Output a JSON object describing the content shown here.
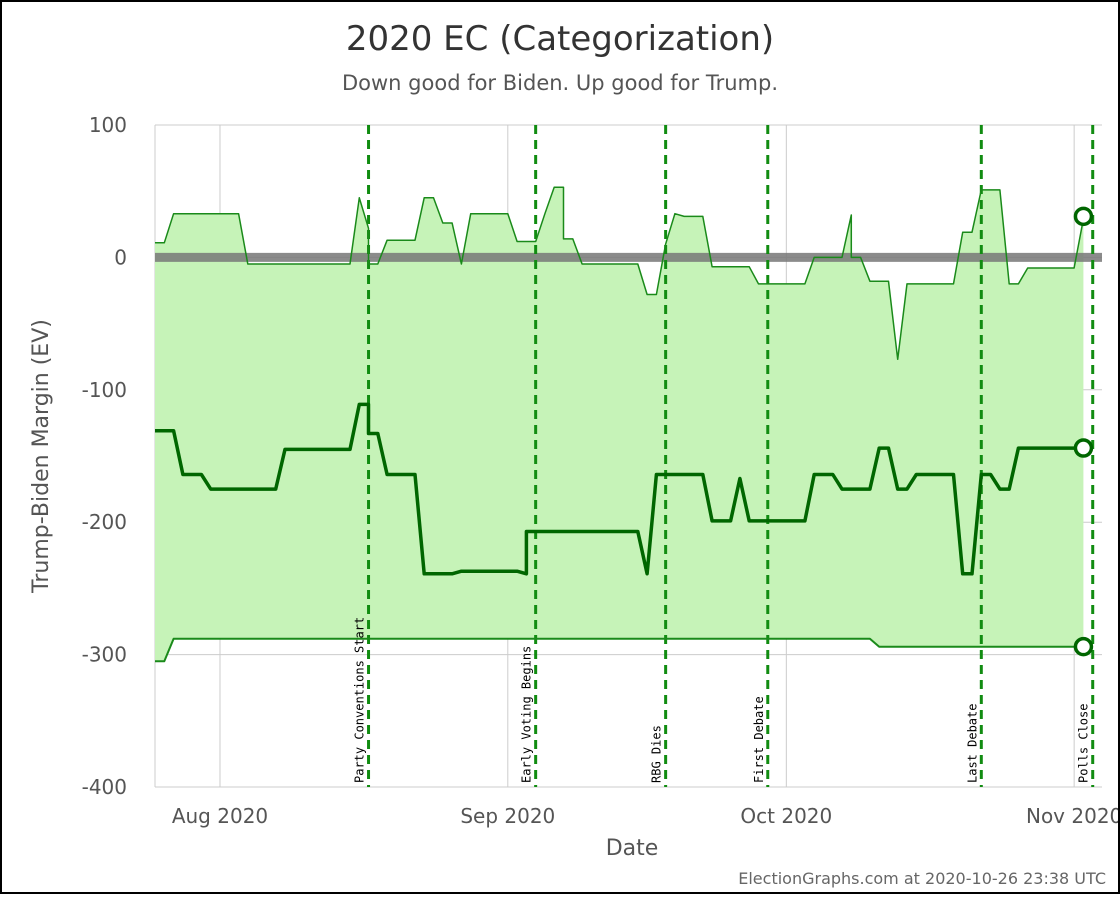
{
  "chart_data": {
    "type": "line",
    "title": "2020 EC (Categorization)",
    "subtitle": "Down good for Biden. Up good for Trump.",
    "xlabel": "Date",
    "ylabel": "Trump-Biden Margin (EV)",
    "xlim": [
      "2020-07-25",
      "2020-11-04"
    ],
    "ylim": [
      -400,
      100
    ],
    "yticks": [
      100,
      0,
      -100,
      -200,
      -300,
      -400
    ],
    "xticks": [
      {
        "date": "2020-08-01",
        "label": "Aug 2020"
      },
      {
        "date": "2020-09-01",
        "label": "Sep 2020"
      },
      {
        "date": "2020-10-01",
        "label": "Oct 2020"
      },
      {
        "date": "2020-11-01",
        "label": "Nov 2020"
      }
    ],
    "grid": true,
    "legend": "none",
    "colors": {
      "band_fill": "#c6f3b8",
      "line": "#1a8a1a",
      "center_line": "#006600",
      "event_line": "#118c11",
      "zero_line": "#777777"
    },
    "events": [
      {
        "date": "2020-08-17",
        "label": "Party Conventions Start"
      },
      {
        "date": "2020-09-04",
        "label": "Early Voting Begins"
      },
      {
        "date": "2020-09-18",
        "label": "RBG Dies"
      },
      {
        "date": "2020-09-29",
        "label": "First Debate"
      },
      {
        "date": "2020-10-22",
        "label": "Last Debate"
      },
      {
        "date": "2020-11-03",
        "label": "Polls Close"
      }
    ],
    "series": [
      {
        "role": "upper",
        "points": [
          [
            "2020-07-25",
            11
          ],
          [
            "2020-07-26",
            11
          ],
          [
            "2020-07-27",
            33
          ],
          [
            "2020-08-03",
            33
          ],
          [
            "2020-08-04",
            -5
          ],
          [
            "2020-08-15",
            -5
          ],
          [
            "2020-08-16",
            45
          ],
          [
            "2020-08-17",
            22
          ],
          [
            "2020-08-17",
            -5
          ],
          [
            "2020-08-18",
            -5
          ],
          [
            "2020-08-19",
            13
          ],
          [
            "2020-08-22",
            13
          ],
          [
            "2020-08-23",
            45
          ],
          [
            "2020-08-24",
            45
          ],
          [
            "2020-08-25",
            26
          ],
          [
            "2020-08-26",
            26
          ],
          [
            "2020-08-27",
            -5
          ],
          [
            "2020-08-28",
            33
          ],
          [
            "2020-09-01",
            33
          ],
          [
            "2020-09-02",
            12
          ],
          [
            "2020-09-04",
            12
          ],
          [
            "2020-09-05",
            33
          ],
          [
            "2020-09-06",
            53
          ],
          [
            "2020-09-07",
            53
          ],
          [
            "2020-09-07",
            14
          ],
          [
            "2020-09-08",
            14
          ],
          [
            "2020-09-09",
            -5
          ],
          [
            "2020-09-15",
            -5
          ],
          [
            "2020-09-16",
            -28
          ],
          [
            "2020-09-17",
            -28
          ],
          [
            "2020-09-18",
            10
          ],
          [
            "2020-09-19",
            33
          ],
          [
            "2020-09-20",
            31
          ],
          [
            "2020-09-22",
            31
          ],
          [
            "2020-09-23",
            -7
          ],
          [
            "2020-09-27",
            -7
          ],
          [
            "2020-09-28",
            -20
          ],
          [
            "2020-10-03",
            -20
          ],
          [
            "2020-10-04",
            0
          ],
          [
            "2020-10-07",
            0
          ],
          [
            "2020-10-08",
            32
          ],
          [
            "2020-10-08",
            0
          ],
          [
            "2020-10-09",
            0
          ],
          [
            "2020-10-10",
            -18
          ],
          [
            "2020-10-12",
            -18
          ],
          [
            "2020-10-13",
            -77
          ],
          [
            "2020-10-14",
            -20
          ],
          [
            "2020-10-19",
            -20
          ],
          [
            "2020-10-20",
            19
          ],
          [
            "2020-10-21",
            19
          ],
          [
            "2020-10-22",
            51
          ],
          [
            "2020-10-24",
            51
          ],
          [
            "2020-10-25",
            -20
          ],
          [
            "2020-10-26",
            -20
          ],
          [
            "2020-10-27",
            -8
          ],
          [
            "2020-11-01",
            -8
          ],
          [
            "2020-11-02",
            29
          ],
          [
            "2020-11-02",
            31
          ]
        ]
      },
      {
        "role": "center",
        "points": [
          [
            "2020-07-25",
            -131
          ],
          [
            "2020-07-27",
            -131
          ],
          [
            "2020-07-28",
            -164
          ],
          [
            "2020-07-30",
            -164
          ],
          [
            "2020-07-31",
            -175
          ],
          [
            "2020-08-07",
            -175
          ],
          [
            "2020-08-08",
            -145
          ],
          [
            "2020-08-15",
            -145
          ],
          [
            "2020-08-16",
            -111
          ],
          [
            "2020-08-17",
            -111
          ],
          [
            "2020-08-17",
            -133
          ],
          [
            "2020-08-18",
            -133
          ],
          [
            "2020-08-19",
            -164
          ],
          [
            "2020-08-22",
            -164
          ],
          [
            "2020-08-23",
            -239
          ],
          [
            "2020-08-26",
            -239
          ],
          [
            "2020-08-27",
            -237
          ],
          [
            "2020-09-02",
            -237
          ],
          [
            "2020-09-03",
            -239
          ],
          [
            "2020-09-03",
            -207
          ],
          [
            "2020-09-15",
            -207
          ],
          [
            "2020-09-16",
            -239
          ],
          [
            "2020-09-17",
            -164
          ],
          [
            "2020-09-22",
            -164
          ],
          [
            "2020-09-23",
            -199
          ],
          [
            "2020-09-25",
            -199
          ],
          [
            "2020-09-26",
            -167
          ],
          [
            "2020-09-27",
            -199
          ],
          [
            "2020-10-03",
            -199
          ],
          [
            "2020-10-04",
            -164
          ],
          [
            "2020-10-06",
            -164
          ],
          [
            "2020-10-07",
            -175
          ],
          [
            "2020-10-10",
            -175
          ],
          [
            "2020-10-11",
            -144
          ],
          [
            "2020-10-12",
            -144
          ],
          [
            "2020-10-13",
            -175
          ],
          [
            "2020-10-14",
            -175
          ],
          [
            "2020-10-15",
            -164
          ],
          [
            "2020-10-19",
            -164
          ],
          [
            "2020-10-20",
            -239
          ],
          [
            "2020-10-21",
            -239
          ],
          [
            "2020-10-22",
            -164
          ],
          [
            "2020-10-23",
            -164
          ],
          [
            "2020-10-24",
            -175
          ],
          [
            "2020-10-25",
            -175
          ],
          [
            "2020-10-26",
            -144
          ],
          [
            "2020-11-02",
            -144
          ]
        ]
      },
      {
        "role": "lower",
        "points": [
          [
            "2020-07-25",
            -305
          ],
          [
            "2020-07-26",
            -305
          ],
          [
            "2020-07-27",
            -288
          ],
          [
            "2020-10-10",
            -288
          ],
          [
            "2020-10-11",
            -294
          ],
          [
            "2020-11-02",
            -294
          ]
        ]
      }
    ],
    "final_values": {
      "upper": 31,
      "center": -144,
      "lower": -294
    }
  },
  "footer": {
    "credit": "ElectionGraphs.com at 2020-10-26 23:38 UTC"
  }
}
